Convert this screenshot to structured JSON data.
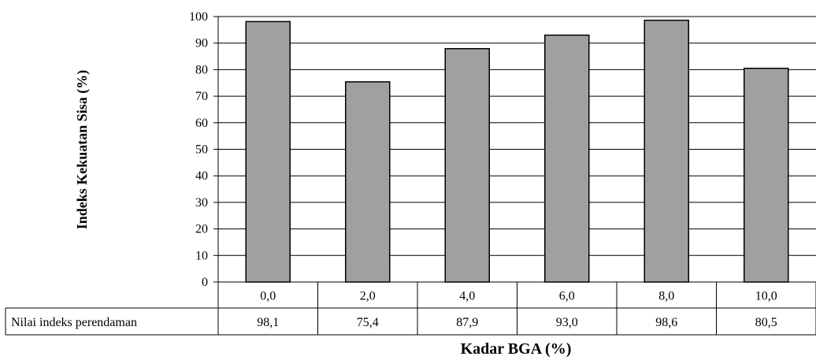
{
  "chart_data": {
    "type": "bar",
    "categories": [
      "0,0",
      "2,0",
      "4,0",
      "6,0",
      "8,0",
      "10,0"
    ],
    "values": [
      98.1,
      75.4,
      87.9,
      93.0,
      98.6,
      80.5
    ],
    "value_labels": [
      "98,1",
      "75,4",
      "87,9",
      "93,0",
      "98,6",
      "80,5"
    ],
    "table_row_label": "Nilai indeks perendaman",
    "xlabel": "Kadar BGA (%)",
    "ylabel": "Indeks Kekuatan Sisa (%)",
    "ylim": [
      0,
      100
    ],
    "yticks": [
      0,
      10,
      20,
      30,
      40,
      50,
      60,
      70,
      80,
      90,
      100
    ],
    "grid": true,
    "colors": {
      "bar": "#a0a0a0",
      "bar_stroke": "#000000",
      "grid": "#000000"
    }
  }
}
